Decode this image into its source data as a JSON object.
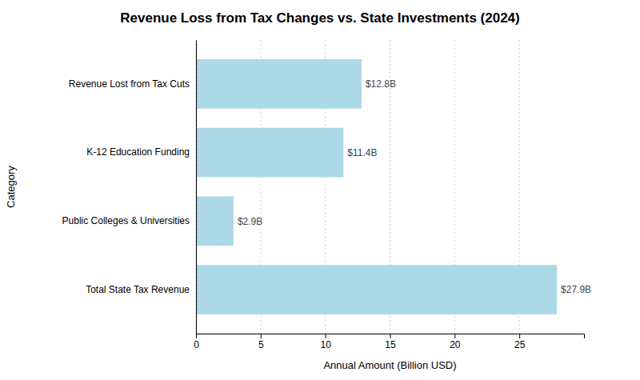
{
  "chart_data": {
    "type": "bar",
    "orientation": "horizontal",
    "title": "Revenue Loss from Tax Changes vs. State Investments (2024)",
    "xlabel": "Annual Amount (Billion USD)",
    "ylabel": "Category",
    "categories": [
      "Total State Tax Revenue",
      "Public Colleges & Universities",
      "K-12 Education Funding",
      "Revenue Lost from Tax Cuts"
    ],
    "values": [
      27.9,
      2.9,
      11.4,
      12.8
    ],
    "value_labels": [
      "$27.9B",
      "$2.9B",
      "$11.4B",
      "$12.8B"
    ],
    "data_labels": true,
    "color": "#add8e6",
    "xlim": [
      0,
      30
    ],
    "xticks": [
      0,
      5,
      10,
      15,
      20,
      25
    ],
    "grid": true
  }
}
